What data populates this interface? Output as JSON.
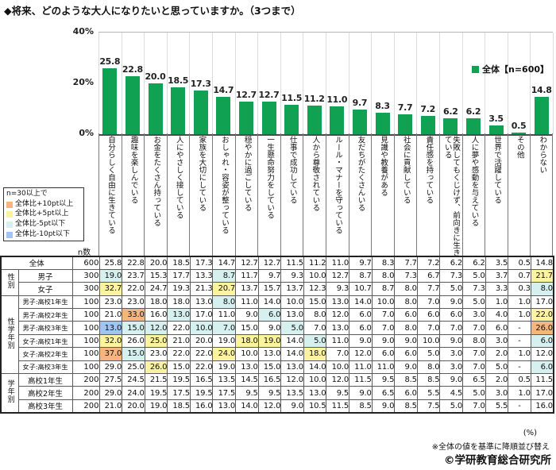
{
  "title": "◆将来、どのような大人になりたいと思っていますか。（3つまで）",
  "chart_data": {
    "type": "bar",
    "title": "将来、どのような大人になりたいと思っていますか。（3つまで）",
    "categories": [
      "自分らしく自由に生きている",
      "趣味を楽しんでいる",
      "お金をたくさん持っている",
      "人にやさしく接している",
      "家族を大切にしている",
      "おしゃれ・容姿が整っている",
      "穏やかに過ごしている",
      "一生懸命努力をしている",
      "仕事で成功している",
      "人から尊敬されている",
      "ルール・マナーを守っている",
      "友だちがたくさんいる",
      "見識や教養がある",
      "社会に貢献している",
      "責任感を持っている",
      "失敗してもくじけず、前向きに生きている",
      "人に夢や感動を与えている",
      "世界で活躍している",
      "その他",
      "わからない"
    ],
    "values": [
      25.8,
      22.8,
      20.0,
      18.5,
      17.3,
      14.7,
      12.7,
      12.7,
      11.5,
      11.2,
      11.0,
      9.7,
      8.3,
      7.7,
      7.2,
      6.2,
      6.2,
      3.5,
      0.5,
      14.8
    ],
    "ylabel": "%",
    "ylim": [
      0,
      40
    ],
    "yticks": [
      "40%",
      "20%",
      "0%"
    ],
    "grid": "vertical-separators",
    "legend": "全体【n=600】",
    "legend_position": "top-right"
  },
  "colors": {
    "bar": "#10A252",
    "plus10": "#F5B57F",
    "plus5": "#FCF3A0",
    "minus5": "#D5F0EE",
    "minus10": "#9FC5F0"
  },
  "highlight_legend": {
    "title": "n=30以上で",
    "items": [
      {
        "label": "全体比+10pt以上",
        "key": "plus10"
      },
      {
        "label": "全体比+5pt以上",
        "key": "plus5"
      },
      {
        "label": "全体比-5pt以下",
        "key": "minus5"
      },
      {
        "label": "全体比-10pt以下",
        "key": "minus10"
      }
    ]
  },
  "table": {
    "n_header": "n数",
    "groups": [
      {
        "label": "",
        "rows": [
          {
            "label": "全体",
            "n": "600",
            "values": [
              "25.8",
              "22.8",
              "20.0",
              "18.5",
              "17.3",
              "14.7",
              "12.7",
              "12.7",
              "11.5",
              "11.2",
              "11.0",
              "9.7",
              "8.3",
              "7.7",
              "7.2",
              "6.2",
              "6.2",
              "3.5",
              "0.5",
              "14.8"
            ],
            "highlights": {}
          }
        ]
      },
      {
        "label": "性別",
        "rows": [
          {
            "label": "男子",
            "n": "300",
            "values": [
              "19.0",
              "23.7",
              "15.3",
              "17.7",
              "13.3",
              "8.7",
              "11.7",
              "9.7",
              "9.3",
              "10.0",
              "12.7",
              "8.7",
              "8.0",
              "7.3",
              "6.7",
              "7.3",
              "5.0",
              "3.7",
              "0.7",
              "21.7"
            ],
            "highlights": {
              "0": "minus5",
              "5": "minus5",
              "19": "plus5"
            }
          },
          {
            "label": "女子",
            "n": "300",
            "values": [
              "32.7",
              "22.0",
              "24.7",
              "19.3",
              "21.3",
              "20.7",
              "13.7",
              "15.7",
              "13.7",
              "12.3",
              "9.3",
              "10.7",
              "8.7",
              "8.0",
              "7.7",
              "5.0",
              "7.3",
              "3.3",
              "0.3",
              "8.0"
            ],
            "highlights": {
              "0": "plus5",
              "5": "plus5",
              "19": "minus5"
            }
          }
        ]
      },
      {
        "label": "性学年別",
        "rows": [
          {
            "label": "男子:高校1年生",
            "n": "100",
            "values": [
              "23.0",
              "23.0",
              "18.0",
              "18.0",
              "13.0",
              "8.0",
              "11.0",
              "14.0",
              "10.0",
              "15.0",
              "13.0",
              "14.0",
              "10.0",
              "8.0",
              "7.0",
              "9.0",
              "5.0",
              "1.0",
              "1.0",
              "17.0"
            ],
            "highlights": {
              "5": "minus5"
            }
          },
          {
            "label": "男子:高校2年生",
            "n": "100",
            "values": [
              "21.0",
              "33.0",
              "16.0",
              "13.0",
              "17.0",
              "11.0",
              "9.0",
              "6.0",
              "13.0",
              "8.0",
              "12.0",
              "6.0",
              "7.0",
              "6.0",
              "6.0",
              "6.0",
              "3.0",
              "4.0",
              "1.0",
              "22.0"
            ],
            "highlights": {
              "1": "plus10",
              "3": "minus5",
              "7": "minus5",
              "19": "plus5"
            }
          },
          {
            "label": "男子:高校3年生",
            "n": "100",
            "values": [
              "13.0",
              "15.0",
              "12.0",
              "22.0",
              "10.0",
              "7.0",
              "15.0",
              "9.0",
              "5.0",
              "7.0",
              "13.0",
              "6.0",
              "7.0",
              "8.0",
              "7.0",
              "7.0",
              "7.0",
              "6.0",
              "-",
              "26.0"
            ],
            "highlights": {
              "0": "minus10",
              "1": "minus5",
              "2": "minus5",
              "4": "minus5",
              "5": "minus5",
              "8": "minus5",
              "19": "plus10"
            }
          },
          {
            "label": "女子:高校1年生",
            "n": "100",
            "values": [
              "32.0",
              "26.0",
              "25.0",
              "21.0",
              "20.0",
              "19.0",
              "18.0",
              "19.0",
              "14.0",
              "5.0",
              "11.0",
              "9.0",
              "9.0",
              "9.0",
              "10.0",
              "9.0",
              "8.0",
              "3.0",
              "-",
              "6.0"
            ],
            "highlights": {
              "0": "plus5",
              "2": "plus5",
              "6": "plus5",
              "7": "plus5",
              "9": "minus5",
              "19": "minus5"
            }
          },
          {
            "label": "女子:高校2年生",
            "n": "100",
            "values": [
              "37.0",
              "15.0",
              "23.0",
              "22.0",
              "22.0",
              "24.0",
              "10.0",
              "13.0",
              "14.0",
              "18.0",
              "7.0",
              "12.0",
              "6.0",
              "6.0",
              "5.0",
              "3.0",
              "7.0",
              "2.0",
              "1.0",
              "12.0"
            ],
            "highlights": {
              "0": "plus10",
              "1": "minus5",
              "5": "plus5",
              "9": "plus5"
            }
          },
          {
            "label": "女子:高校3年生",
            "n": "100",
            "values": [
              "29.0",
              "25.0",
              "26.0",
              "15.0",
              "22.0",
              "19.0",
              "13.0",
              "15.0",
              "13.0",
              "14.0",
              "10.0",
              "11.0",
              "11.0",
              "9.0",
              "8.0",
              "3.0",
              "7.0",
              "5.0",
              "-",
              "6.0"
            ],
            "highlights": {
              "2": "plus5",
              "19": "minus5"
            }
          }
        ]
      },
      {
        "label": "学年別",
        "rows": [
          {
            "label": "高校1年生",
            "n": "200",
            "values": [
              "27.5",
              "24.5",
              "21.5",
              "19.5",
              "16.5",
              "13.5",
              "14.5",
              "16.5",
              "12.0",
              "10.0",
              "12.0",
              "11.5",
              "9.5",
              "8.5",
              "8.5",
              "9.0",
              "6.5",
              "2.0",
              "0.5",
              "11.5"
            ],
            "highlights": {}
          },
          {
            "label": "高校2年生",
            "n": "200",
            "values": [
              "29.0",
              "24.0",
              "19.5",
              "17.5",
              "19.5",
              "17.5",
              "9.5",
              "9.5",
              "13.5",
              "13.0",
              "9.5",
              "9.0",
              "6.5",
              "6.0",
              "5.5",
              "4.5",
              "5.0",
              "3.0",
              "1.0",
              "17.0"
            ],
            "highlights": {}
          },
          {
            "label": "高校3年生",
            "n": "200",
            "values": [
              "21.0",
              "20.0",
              "19.0",
              "18.5",
              "16.0",
              "13.0",
              "14.0",
              "12.0",
              "9.0",
              "10.5",
              "11.5",
              "8.5",
              "9.0",
              "8.5",
              "7.5",
              "5.0",
              "7.0",
              "5.5",
              "-",
              "16.0"
            ],
            "highlights": {}
          }
        ]
      }
    ]
  },
  "footer": {
    "unit": "(%)",
    "sort_note": "※全体の値を基準に降順並び替え",
    "copyright": "©学研教育総合研究所"
  }
}
